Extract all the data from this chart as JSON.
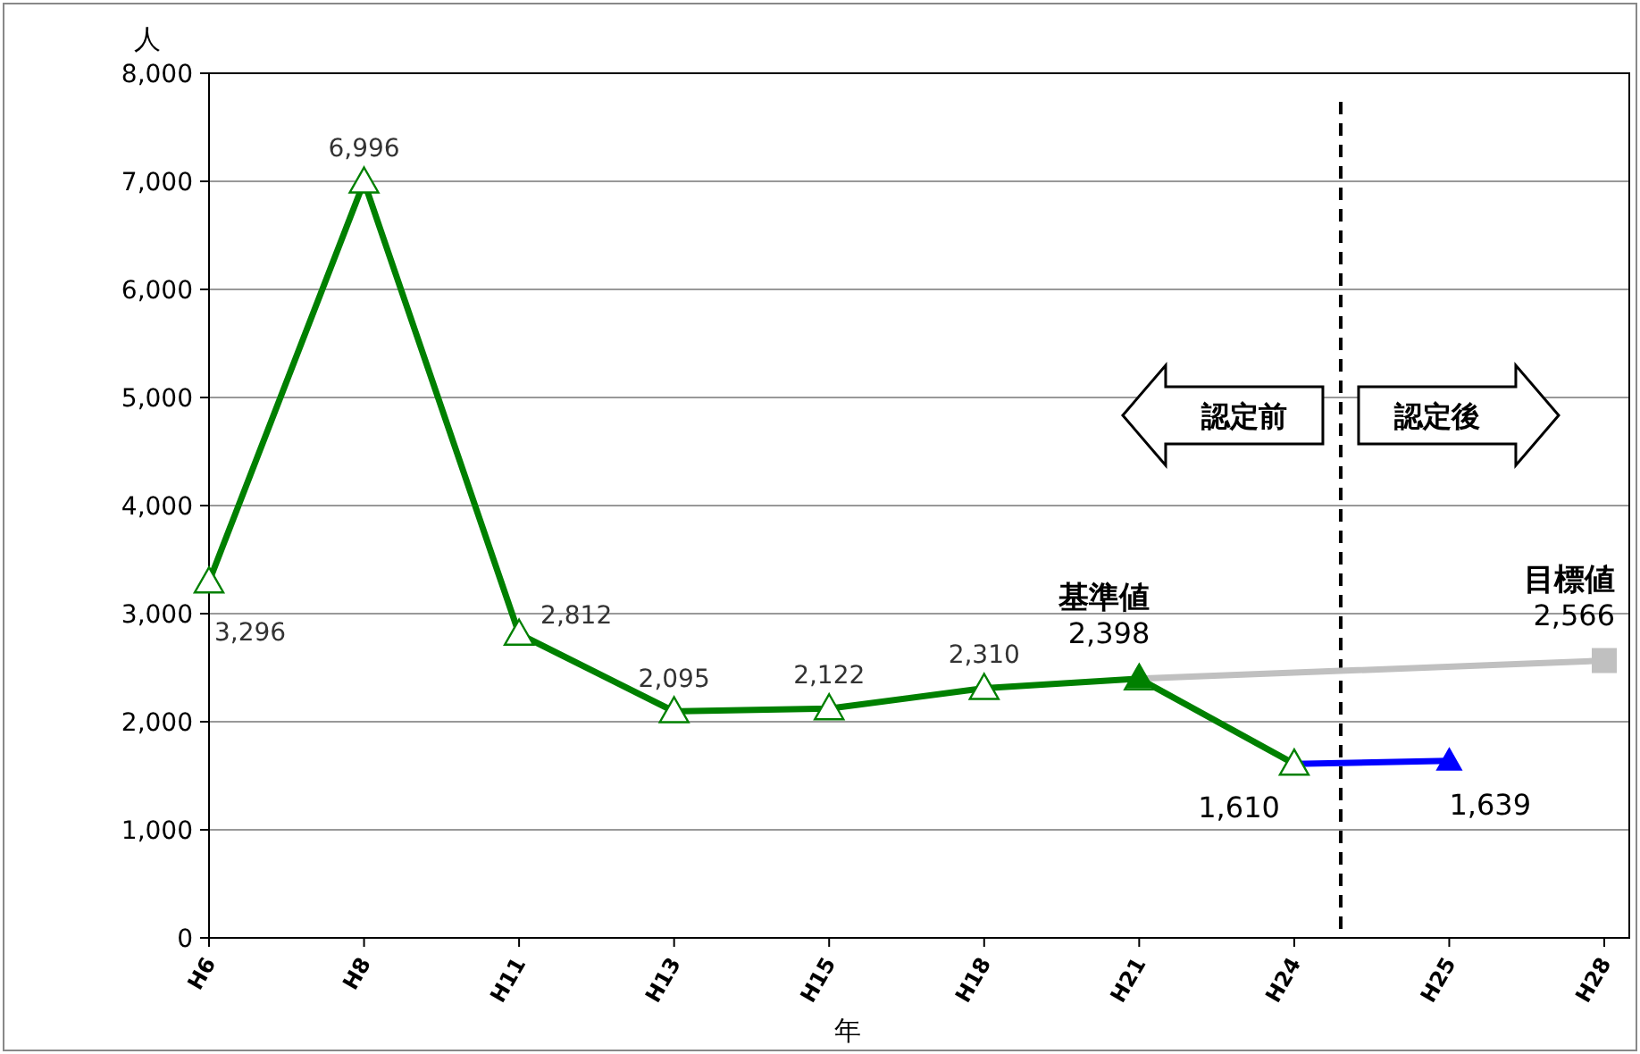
{
  "chart_data": {
    "type": "line",
    "xlabel": "年",
    "ylabel": "人",
    "categories": [
      "H6",
      "H8",
      "H11",
      "H13",
      "H15",
      "H18",
      "H21",
      "H24",
      "H25",
      "H28"
    ],
    "ylim": [
      0,
      8000
    ],
    "yticks": [
      0,
      {
        "value": 1000,
        "label": "1,000"
      },
      {
        "value": 2000,
        "label": "2,000"
      },
      {
        "value": 3000,
        "label": "3,000"
      },
      {
        "value": 4000,
        "label": "4,000"
      },
      {
        "value": 5000,
        "label": "5,000"
      },
      {
        "value": 6000,
        "label": "6,000"
      },
      {
        "value": 7000,
        "label": "7,000"
      },
      {
        "value": 8000,
        "label": "8,000"
      }
    ],
    "grid": "y",
    "series": [
      {
        "color": "#c0c0c0",
        "marker": "none",
        "x": [
          "H21",
          "H28"
        ],
        "values": [
          2398,
          2566
        ]
      },
      {
        "color": "#0000ff",
        "marker": "none",
        "x": [
          "H24",
          "H25"
        ],
        "values": [
          1610,
          1639
        ]
      },
      {
        "color": "#008000",
        "marker": "triangle",
        "x": [
          "H6",
          "H8",
          "H11",
          "H13",
          "H15",
          "H18",
          "H21",
          "H24"
        ],
        "values": [
          3296,
          6996,
          2812,
          2095,
          2122,
          2310,
          2398,
          1610
        ],
        "value_labels": [
          "3,296",
          "6,996",
          "2,812",
          "2,095",
          "2,122",
          "2,310",
          null,
          "1,610"
        ]
      },
      {
        "type": "scatter",
        "color": "#008000",
        "marker": "triangle",
        "x": [
          "H21"
        ],
        "values": [
          2398
        ],
        "value_labels": [
          "2,398"
        ]
      },
      {
        "type": "scatter",
        "color": "#0000ff",
        "marker": "triangle",
        "x": [
          "H25"
        ],
        "values": [
          1639
        ],
        "value_labels": [
          "1,639"
        ]
      },
      {
        "type": "scatter",
        "color": "#c0c0c0",
        "marker": "square",
        "x": [
          "H28"
        ],
        "values": [
          2566
        ],
        "value_labels": [
          "2,566"
        ]
      }
    ],
    "ref_lines": [
      {
        "axis": "x",
        "value": "H24",
        "color": "#000000",
        "line_style": "dashed"
      }
    ],
    "annotations": [
      {
        "text": "基準値",
        "x": "H21",
        "y": 2398
      },
      {
        "text": "目標値",
        "x": "H28",
        "y": 2566
      },
      "認定前",
      "認定後"
    ]
  }
}
